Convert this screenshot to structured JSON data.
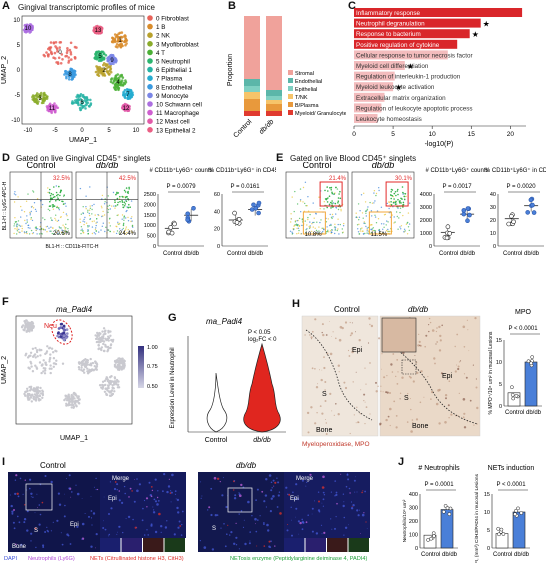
{
  "panel_letters": [
    "A",
    "B",
    "C",
    "D",
    "E",
    "F",
    "G",
    "H",
    "I",
    "J"
  ],
  "A": {
    "title": "Gingival transcriptomic profiles of mice",
    "xaxis": "UMAP_1",
    "yaxis": "UMAP_2",
    "xticks": [
      "-10",
      "-5",
      "0",
      "5",
      "10"
    ],
    "yticks": [
      "10",
      "5",
      "0",
      "-5",
      "-10"
    ],
    "clusters": [
      {
        "label": "0 Fibroblast",
        "color": "#e8635a"
      },
      {
        "label": "1 B",
        "color": "#d98c2b"
      },
      {
        "label": "2 NK",
        "color": "#b8a12c"
      },
      {
        "label": "3 Myofibroblast",
        "color": "#8aab2a"
      },
      {
        "label": "4 T",
        "color": "#4bb036"
      },
      {
        "label": "5 Neutrophil",
        "color": "#2cb56f"
      },
      {
        "label": "6 Epithelial 1",
        "color": "#27b3a4"
      },
      {
        "label": "7 Plasma",
        "color": "#25acd0"
      },
      {
        "label": "8 Endothelial",
        "color": "#3a9ae0"
      },
      {
        "label": "9 Monocyte",
        "color": "#7b86e6"
      },
      {
        "label": "10 Schwann cell",
        "color": "#ac6fe0"
      },
      {
        "label": "11 Macrophage",
        "color": "#cf5fd0"
      },
      {
        "label": "12 Mast cell",
        "color": "#e25aa8"
      },
      {
        "label": "13 Epithelial 2",
        "color": "#ea5f84"
      }
    ]
  },
  "B": {
    "ylabel": "Proportion",
    "groups": [
      "Control",
      "db/db"
    ],
    "legend": [
      "Stromal",
      "Endothelial",
      "Epithelial",
      "T/NK",
      "B/Plasma",
      "Myeloid/ Granulocyte"
    ],
    "colors": [
      "#f0a29b",
      "#5bb6a9",
      "#7fd0c2",
      "#f6c46a",
      "#e8993c",
      "#e03a2f"
    ],
    "chart_data": {
      "type": "bar",
      "categories": [
        "Control",
        "db/db"
      ],
      "series": [
        {
          "name": "Stromal",
          "values": [
            0.63,
            0.74
          ]
        },
        {
          "name": "Endothelial",
          "values": [
            0.07,
            0.06
          ]
        },
        {
          "name": "Epithelial",
          "values": [
            0.06,
            0.04
          ]
        },
        {
          "name": "T/NK",
          "values": [
            0.07,
            0.04
          ]
        },
        {
          "name": "B/Plasma",
          "values": [
            0.12,
            0.07
          ]
        },
        {
          "name": "Myeloid/ Granulocyte",
          "values": [
            0.05,
            0.05
          ]
        }
      ]
    }
  },
  "C": {
    "xlabel": "-log10(P)",
    "xticks": [
      "0",
      "5",
      "10",
      "15",
      "20"
    ],
    "chart_data": {
      "type": "bar",
      "categories": [
        "Inflammatory response",
        "Neutrophil degranulation",
        "Response to bacterium",
        "Positive regulation of cytokine",
        "Cellular response to tumor necrosis factor",
        "Myeloid cell differentiation",
        "Regulation of interleukin-1 production",
        "Myeloid leukocyte activation",
        "Extracellular matrix organization",
        "Regulation of leukocyte apoptotic process",
        "Leukocyte homeostasis"
      ],
      "values": [
        21.5,
        16.2,
        14.8,
        13.2,
        12.0,
        6.5,
        5.2,
        5.0,
        3.9,
        3.5,
        3.0
      ],
      "starred": [
        false,
        true,
        true,
        false,
        false,
        true,
        false,
        true,
        false,
        false,
        false
      ],
      "xlim": [
        0,
        22
      ]
    }
  },
  "D": {
    "title": "Gated on live Gingival CD45⁺ singlets",
    "groups": [
      "Control",
      "db/db"
    ],
    "gate_top": [
      "32.5%",
      "42.5%"
    ],
    "gate_bottom": [
      "20.6%",
      "24.4%"
    ],
    "axis_x": "BL1-H :: CD11b-FITC-H",
    "axis_y": "BL1-H :: Ly6G-APC-H",
    "plot1": {
      "title": "# CD11b⁺Ly6G⁺ counts",
      "p": "P = 0.0079",
      "yticks": [
        "2500",
        "2000",
        "1500",
        "1000",
        "500",
        "0"
      ],
      "xlabel": "Control db/db",
      "chart_data": {
        "type": "scatter",
        "categories": [
          "Control",
          "db/db"
        ],
        "means": [
          850,
          1480
        ],
        "ylim": [
          0,
          2500
        ]
      }
    },
    "plot2": {
      "title": "% CD11b⁺Ly6G⁺ in CD45⁺",
      "p": "P = 0.0161",
      "yticks": [
        "60",
        "40",
        "20",
        "0"
      ],
      "xlabel": "Control db/db",
      "chart_data": {
        "type": "scatter",
        "categories": [
          "Control",
          "db/db"
        ],
        "means": [
          30,
          42
        ],
        "ylim": [
          0,
          60
        ]
      }
    }
  },
  "E": {
    "title": "Gated on live Blood CD45⁺ singlets",
    "groups": [
      "Control",
      "db/db"
    ],
    "gate_top": [
      "21.4%",
      "30.1%"
    ],
    "gate_bottom": [
      "10.8%",
      "11.5%"
    ],
    "plot1": {
      "title": "# CD11b⁺Ly6G⁺ counts",
      "p": "P = 0.0017",
      "yticks": [
        "4000",
        "3000",
        "2000",
        "1000",
        "0"
      ],
      "xlabel": "Control db/db",
      "chart_data": {
        "type": "scatter",
        "categories": [
          "Control",
          "db/db"
        ],
        "means": [
          1050,
          2450
        ],
        "ylim": [
          0,
          4000
        ]
      }
    },
    "plot2": {
      "title": "% CD11b⁺Ly6G⁺ in CD45⁺",
      "p": "P = 0.0020",
      "yticks": [
        "40",
        "30",
        "20",
        "10",
        "0"
      ],
      "xlabel": "Control db/db",
      "chart_data": {
        "type": "scatter",
        "categories": [
          "Control",
          "db/db"
        ],
        "means": [
          21,
          31
        ],
        "ylim": [
          0,
          40
        ]
      }
    }
  },
  "F": {
    "title": "ma_Padi4",
    "neu": "Neu",
    "xaxis": "UMAP_1",
    "yaxis": "UMAP_2",
    "scale": [
      "1.00",
      "0.75",
      "0.50"
    ]
  },
  "G": {
    "title": "ma_Padi4",
    "stat1": "P < 0.05",
    "stat2": "log₂FC < 0",
    "ylabel": "Expression Level in Neutrophil",
    "groups": [
      "Control",
      "db/db"
    ],
    "chart_data": {
      "type": "violin",
      "categories": [
        "Control",
        "db/db"
      ]
    }
  },
  "H": {
    "groups": [
      "Control",
      "db/db"
    ],
    "labels_epi": "Epi",
    "labels_s": "S",
    "labels_bone": "Bone",
    "caption": "Myeloperoxidase, MPO",
    "plot": {
      "title": "MPO",
      "p": "P < 0.0001",
      "yticks": [
        "15",
        "10",
        "5",
        "0"
      ],
      "ylabel": "% MPO⁺/10⁴ um² in mucosal Lesions",
      "xlabel": "Control db/db",
      "chart_data": {
        "type": "bar",
        "categories": [
          "Control",
          "db/db"
        ],
        "values": [
          3,
          10
        ],
        "ylim": [
          0,
          15
        ]
      }
    }
  },
  "I": {
    "groups": [
      "Control",
      "db/db"
    ],
    "merge": "Merge",
    "epi": "Epi",
    "s": "S",
    "bone": "Bone",
    "legend": [
      {
        "text": "DAPI",
        "color": "#3b4fd6"
      },
      {
        "text": "Neutrophils (Ly6G)",
        "color": "#b04cd6"
      },
      {
        "text": "NETs (Citrullinated histone H3, CitH3)",
        "color": "#e0302a"
      },
      {
        "text": "NETosis enzyme (Peptidylarginine deiminase 4, PADI4)",
        "color": "#1fa13a"
      }
    ]
  },
  "J": {
    "plot1": {
      "title": "# Neutrophils",
      "p": "P = 0.0001",
      "yticks": [
        "400",
        "300",
        "200",
        "100",
        "0"
      ],
      "ylabel": "Neutrophils/10⁴ um²",
      "xlabel": "Control db/db",
      "chart_data": {
        "type": "bar",
        "categories": [
          "Control",
          "db/db"
        ],
        "values": [
          95,
          285
        ],
        "ylim": [
          0,
          400
        ]
      }
    },
    "plot2": {
      "title": "NETs induction",
      "p": "P < 0.0001",
      "yticks": [
        "15",
        "10",
        "5",
        "0"
      ],
      "ylabel": "MFI, (mm²) CitH3/PADI4 in mucosal Lesions",
      "xlabel": "Control db/db",
      "chart_data": {
        "type": "bar",
        "categories": [
          "Control",
          "db/db"
        ],
        "values": [
          4,
          10
        ],
        "ylim": [
          0,
          15
        ]
      }
    }
  }
}
